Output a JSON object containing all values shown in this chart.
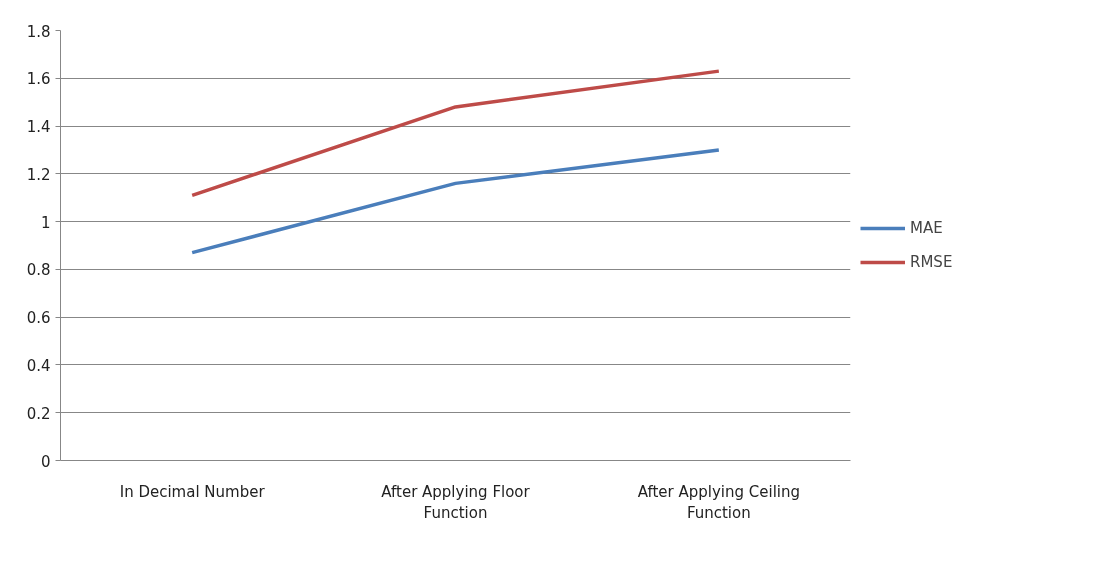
{
  "chart_data": {
    "type": "line",
    "categories": [
      "In Decimal Number",
      "After Applying Floor Function",
      "After Applying Ceiling Function"
    ],
    "series": [
      {
        "name": "MAE",
        "color": "#4a7ebb",
        "values": [
          0.87,
          1.16,
          1.3
        ]
      },
      {
        "name": "RMSE",
        "color": "#be4b48",
        "values": [
          1.11,
          1.48,
          1.63
        ]
      }
    ],
    "ylim": [
      0,
      1.8
    ],
    "yticks": [
      0,
      {
        "value": 0.2,
        "label": "0.2"
      },
      {
        "value": 0.4,
        "label": "0.4"
      },
      {
        "value": 0.6,
        "label": "0.6"
      },
      {
        "value": 0.8,
        "label": "0.8"
      },
      1,
      {
        "value": 1.2,
        "label": "1.2"
      },
      {
        "value": 1.4,
        "label": "1.4"
      },
      {
        "value": 1.6,
        "label": "1.6"
      },
      {
        "value": 1.8,
        "label": "1.8"
      }
    ],
    "grid": "y",
    "legend": "right",
    "marker": "none",
    "line_style": "solid"
  }
}
